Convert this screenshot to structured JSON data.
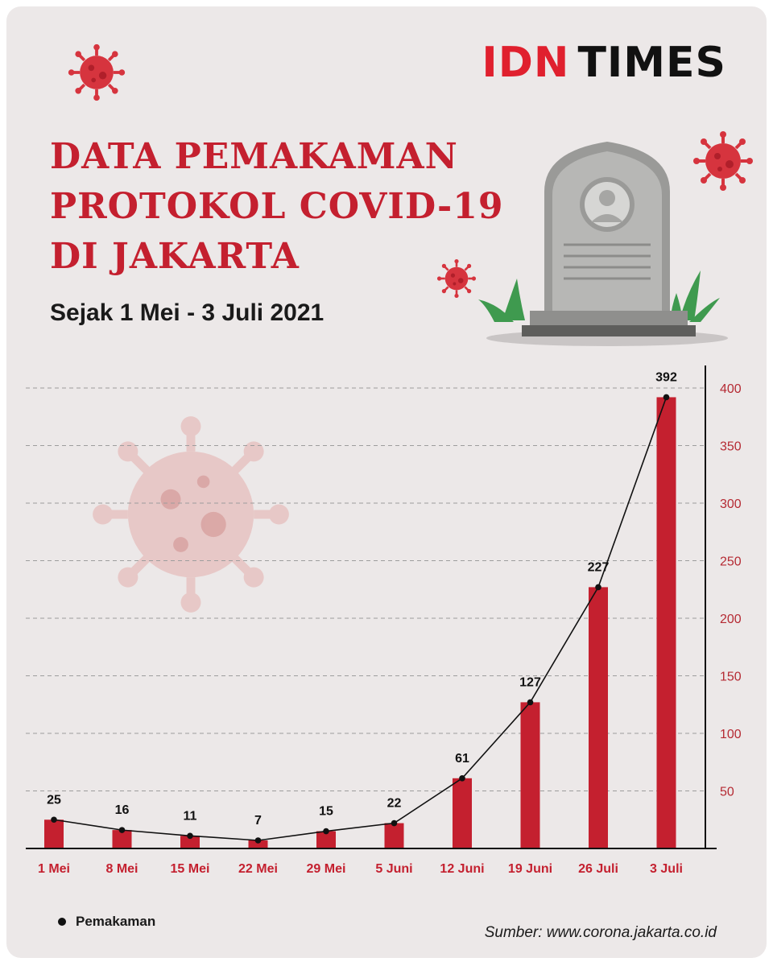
{
  "brand": {
    "idn": "IDN",
    "times": "TIMES"
  },
  "title_lines": [
    "DATA PEMAKAMAN",
    "PROTOKOL COVID-19",
    "DI JAKARTA"
  ],
  "subtitle": "Sejak 1 Mei - 3 Juli 2021",
  "legend": {
    "label": "Pemakaman"
  },
  "source": "Sumber: www.corona.jakarta.co.id",
  "colors": {
    "bar": "#c4202f",
    "title": "#c4202f",
    "line": "#111111",
    "background": "#ece8e8",
    "tick": "#b52a33"
  },
  "icons": [
    "virus-icon",
    "gravestone-icon",
    "grass-icon",
    "virus-watermark-icon"
  ],
  "chart_data": {
    "type": "bar",
    "categories": [
      "1 Mei",
      "8 Mei",
      "15 Mei",
      "22 Mei",
      "29 Mei",
      "5 Juni",
      "12 Juni",
      "19 Juni",
      "26 Juli",
      "3 Juli"
    ],
    "series": [
      {
        "name": "Pemakaman",
        "values": [
          25,
          16,
          11,
          7,
          15,
          22,
          61,
          127,
          227,
          392
        ]
      }
    ],
    "y_ticks": [
      50,
      100,
      150,
      200,
      250,
      300,
      350,
      400
    ],
    "y_axis_position": "right",
    "grid": true,
    "line_overlay": true,
    "data_labels": true,
    "legend_position": "bottom-left"
  }
}
